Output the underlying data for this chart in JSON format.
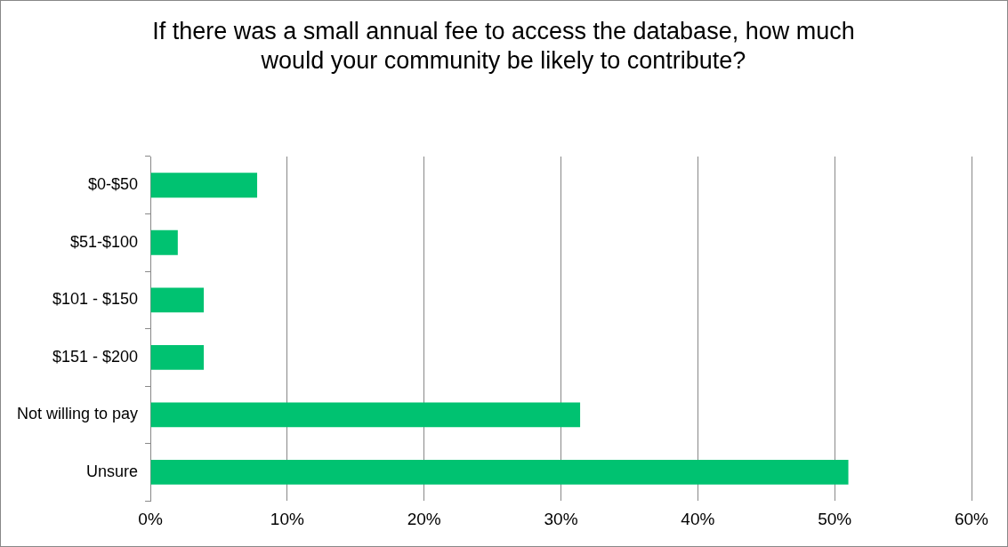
{
  "chart_data": {
    "type": "bar",
    "orientation": "horizontal",
    "title": "If there was a small annual fee to access the database, how much would your community be likely to contribute?",
    "categories": [
      "$0-$50",
      "$51-$100",
      "$101 - $150",
      "$151 - $200",
      "Not willing to pay",
      "Unsure"
    ],
    "values": [
      7.8,
      2.0,
      3.9,
      3.9,
      31.4,
      51.0
    ],
    "color": "#00c271",
    "xlim": [
      0,
      60
    ],
    "xticks": [
      {
        "value": 0,
        "label": "0%"
      },
      {
        "value": 10,
        "label": "10%"
      },
      {
        "value": 20,
        "label": "20%"
      },
      {
        "value": 30,
        "label": "30%"
      },
      {
        "value": 40,
        "label": "40%"
      },
      {
        "value": 50,
        "label": "50%"
      },
      {
        "value": 60,
        "label": "60%"
      }
    ],
    "grid": "x",
    "legend": false
  }
}
